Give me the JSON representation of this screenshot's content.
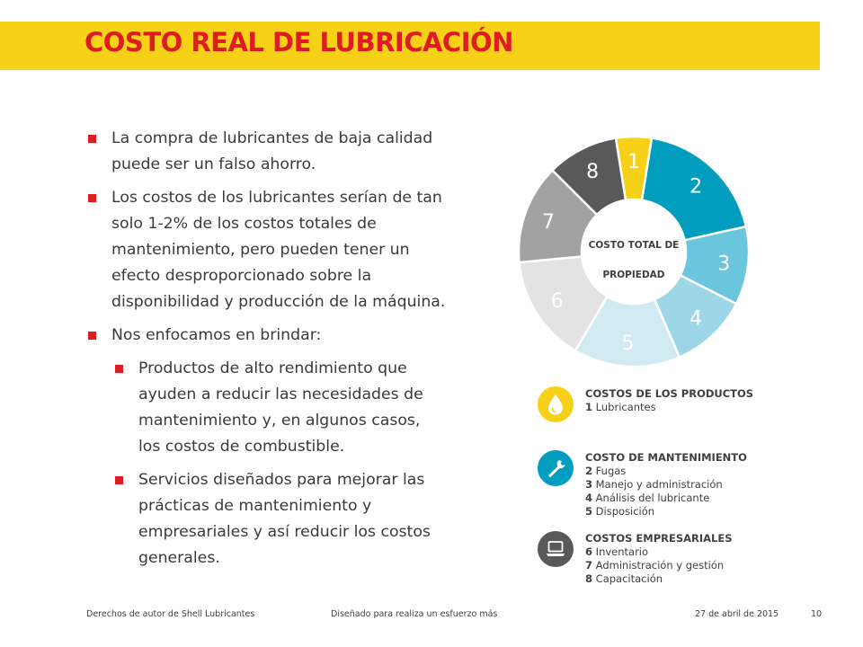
{
  "header": {
    "title": "COSTO REAL DE LUBRICACIÓN"
  },
  "bullets": [
    {
      "text": "La compra de lubricantes de baja calidad puede ser un falso ahorro."
    },
    {
      "text": "Los costos de los lubricantes serían de tan solo 1-2% de los costos totales de mantenimiento, pero pueden tener un efecto desproporcionado sobre la disponibilidad y producción de la máquina."
    },
    {
      "text": "Nos enfocamos en brindar:"
    }
  ],
  "sub_bullets": [
    {
      "text": "Productos de alto rendimiento que ayuden a reducir las necesidades de mantenimiento y, en algunos casos, los costos de combustible."
    },
    {
      "text": "Servicios diseñados para mejorar las prácticas de mantenimiento y empresariales y así reducir los costos generales."
    }
  ],
  "chart_data": {
    "type": "pie",
    "center_label_line1": "COSTO TOTAL DE",
    "center_label_line2": "PROPIEDAD",
    "slices": [
      {
        "label": "1",
        "value": 5,
        "color": "#f7d117"
      },
      {
        "label": "2",
        "value": 19,
        "color": "#009dbf"
      },
      {
        "label": "3",
        "value": 11,
        "color": "#6bc5dc"
      },
      {
        "label": "4",
        "value": 11,
        "color": "#9dd6e7"
      },
      {
        "label": "5",
        "value": 15,
        "color": "#d2ebf2"
      },
      {
        "label": "6",
        "value": 15,
        "color": "#e3e3e3"
      },
      {
        "label": "7",
        "value": 14,
        "color": "#a2a2a2"
      },
      {
        "label": "8",
        "value": 10,
        "color": "#595959"
      }
    ]
  },
  "legend": {
    "productos": {
      "icon": "oil-drop-icon",
      "color": "#f7d117",
      "title": "COSTOS DE LOS PRODUCTOS",
      "items": [
        {
          "num": "1",
          "label": "Lubricantes"
        }
      ]
    },
    "mantenimiento": {
      "icon": "wrench-icon",
      "color": "#009dbf",
      "title": "COSTO DE MANTENIMIENTO",
      "items": [
        {
          "num": "2",
          "label": "Fugas"
        },
        {
          "num": "3",
          "label": "Manejo y administración"
        },
        {
          "num": "4",
          "label": "Análisis del lubricante"
        },
        {
          "num": "5",
          "label": "Disposición"
        }
      ]
    },
    "empresariales": {
      "icon": "laptop-icon",
      "color": "#595959",
      "title": "COSTOS EMPRESARIALES",
      "items": [
        {
          "num": "6",
          "label": "Inventario"
        },
        {
          "num": "7",
          "label": "Administración y gestión"
        },
        {
          "num": "8",
          "label": "Capacitación"
        }
      ]
    }
  },
  "footer": {
    "copyright": "Derechos de autor de Shell Lubricantes",
    "tagline": "Diseñado para realiza un esfuerzo más",
    "date": "27 de abril de 2015",
    "page": "10"
  }
}
